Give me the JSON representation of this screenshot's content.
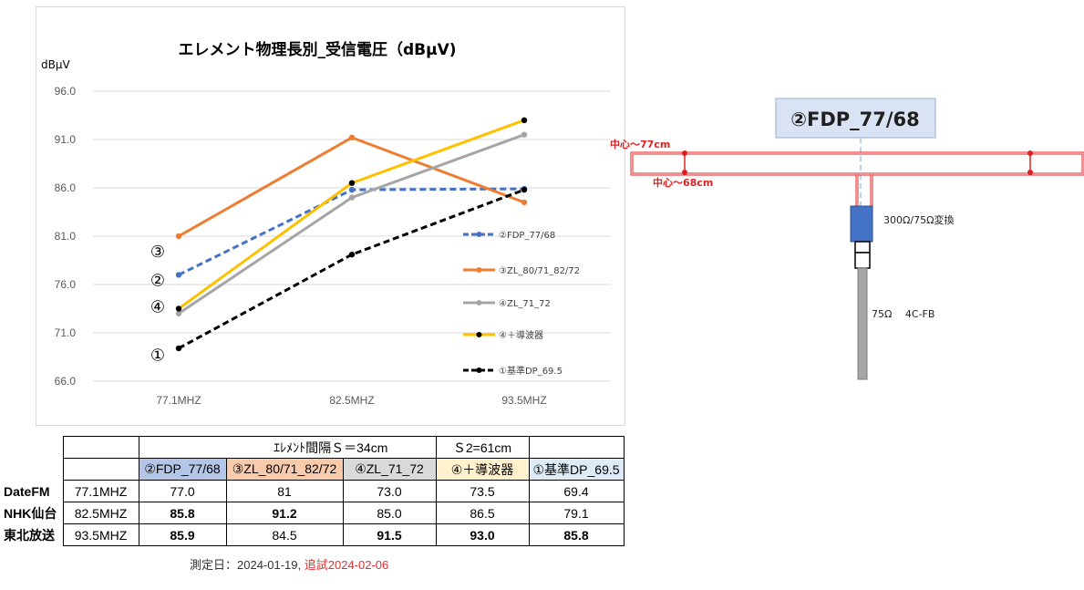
{
  "chart_data": {
    "type": "line",
    "title": "エレメント物理長別_受信電圧（dBμV)",
    "ylabel": "dBμV",
    "xlabel": "",
    "categories": [
      "77.1MHZ",
      "82.5MHZ",
      "93.5MHZ"
    ],
    "ylim": [
      66.0,
      96.0
    ],
    "yticks": [
      "66.0",
      "71.0",
      "76.0",
      "81.0",
      "86.0",
      "91.0",
      "96.0"
    ],
    "grid": true,
    "legend_position": "right",
    "series": [
      {
        "name": "②FDP_77/68",
        "values": [
          77.0,
          85.8,
          85.9
        ],
        "color": "#4472c4",
        "dash": true
      },
      {
        "name": "③ZL_80/71_82/72",
        "values": [
          81.0,
          91.2,
          84.5
        ],
        "color": "#ed7d31",
        "dash": false
      },
      {
        "name": "④ZL_71_72",
        "values": [
          73.0,
          85.0,
          91.5
        ],
        "color": "#a5a5a5",
        "dash": false
      },
      {
        "name": "④＋導波器",
        "values": [
          73.5,
          86.5,
          93.0
        ],
        "color": "#ffc000",
        "dash": false,
        "marker_color": "#000000"
      },
      {
        "name": "①基準DP_69.5",
        "values": [
          69.4,
          79.1,
          85.8
        ],
        "color": "#000000",
        "dash": true
      }
    ],
    "annotations": [
      {
        "text": "③",
        "y": 79.5
      },
      {
        "text": "②",
        "y": 76.5
      },
      {
        "text": "④",
        "y": 73.8
      },
      {
        "text": "①",
        "y": 68.8
      }
    ]
  },
  "table": {
    "group_header_1": "ｴﾚﾒﾝﾄ間隔Ｓ＝34cm",
    "group_header_2": "Ｓ2=61cm",
    "columns": [
      "②FDP_77/68",
      "③ZL_80/71_82/72",
      "④ZL_71_72",
      "④＋導波器",
      "①基準DP_69.5"
    ],
    "rows": [
      {
        "station": "DateFM",
        "freq": "77.1MHZ",
        "values": [
          "77.0",
          "81",
          "73.0",
          "73.5",
          "69.4"
        ],
        "bold": [
          false,
          false,
          false,
          false,
          false
        ]
      },
      {
        "station": "NHK仙台",
        "freq": "82.5MHZ",
        "values": [
          "85.8",
          "91.2",
          "85.0",
          "86.5",
          "79.1"
        ],
        "bold": [
          true,
          true,
          false,
          false,
          false
        ]
      },
      {
        "station": "東北放送",
        "freq": "93.5MHZ",
        "values": [
          "85.9",
          "84.5",
          "91.5",
          "93.0",
          "85.8"
        ],
        "bold": [
          true,
          false,
          true,
          true,
          true
        ]
      }
    ],
    "column_colors": [
      "#b4c6e7",
      "#f8cbad",
      "#d9d9d9",
      "#fff2cc",
      "#ddebf7"
    ]
  },
  "footnote": {
    "date": "測定日：2024-01-19,",
    "retest": "追試2024-02-06"
  },
  "diagram": {
    "title": "②FDP_77/68",
    "label_77": "中心～77cm",
    "label_68": "中心～68cm",
    "balun": "300Ω/75Ω変換",
    "cable": "75Ω　 4C-FB"
  }
}
